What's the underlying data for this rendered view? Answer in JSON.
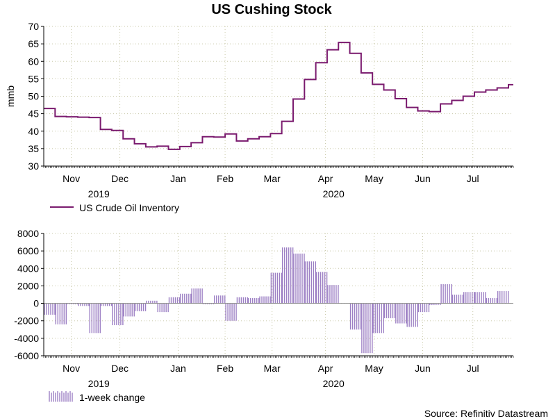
{
  "title": "US Cushing Stock",
  "source": "Source: Refinitiv Datastream",
  "colors": {
    "line": "#7a1a6e",
    "bar": "#9c7fc4",
    "grid": "#c8c8a8",
    "axis": "#000000"
  },
  "chart_data": [
    {
      "type": "line",
      "ylabel": "mmb",
      "ylim": [
        30,
        70
      ],
      "yticks": [
        30,
        35,
        40,
        45,
        50,
        55,
        60,
        65,
        70
      ],
      "xlim": [
        "2019-10-25",
        "2020-08-10"
      ],
      "xticks": [
        {
          "label": "Nov",
          "date": "2019-11-11"
        },
        {
          "label": "Dec",
          "date": "2019-12-11"
        },
        {
          "label": "Jan",
          "date": "2020-01-16"
        },
        {
          "label": "Feb",
          "date": "2020-02-14"
        },
        {
          "label": "Mar",
          "date": "2020-03-14"
        },
        {
          "label": "Apr",
          "date": "2020-04-16"
        },
        {
          "label": "May",
          "date": "2020-05-16"
        },
        {
          "label": "Jun",
          "date": "2020-06-15"
        },
        {
          "label": "Jul",
          "date": "2020-07-16"
        }
      ],
      "year_labels": [
        {
          "label": "2019",
          "date": "2019-11-28"
        },
        {
          "label": "2020",
          "date": "2020-04-21"
        }
      ],
      "grid": true,
      "legend": "bottom-left",
      "series": [
        {
          "name": "US Crude Oil Inventory",
          "x": [
            "2019-10-25",
            "2019-11-01",
            "2019-11-08",
            "2019-11-15",
            "2019-11-22",
            "2019-11-29",
            "2019-12-06",
            "2019-12-13",
            "2019-12-20",
            "2019-12-27",
            "2020-01-03",
            "2020-01-10",
            "2020-01-17",
            "2020-01-24",
            "2020-01-31",
            "2020-02-07",
            "2020-02-14",
            "2020-02-21",
            "2020-02-28",
            "2020-03-06",
            "2020-03-13",
            "2020-03-20",
            "2020-03-27",
            "2020-04-03",
            "2020-04-10",
            "2020-04-17",
            "2020-04-24",
            "2020-05-01",
            "2020-05-08",
            "2020-05-15",
            "2020-05-22",
            "2020-05-29",
            "2020-06-05",
            "2020-06-12",
            "2020-06-19",
            "2020-06-26",
            "2020-07-03",
            "2020-07-10",
            "2020-07-17",
            "2020-07-24",
            "2020-07-31",
            "2020-08-07"
          ],
          "values": [
            46.5,
            44.2,
            44.1,
            44.0,
            43.9,
            40.5,
            40.2,
            37.8,
            36.4,
            35.5,
            35.7,
            34.8,
            35.6,
            36.7,
            38.4,
            38.3,
            39.2,
            37.2,
            37.8,
            38.4,
            39.3,
            42.8,
            49.2,
            54.8,
            59.6,
            63.3,
            65.4,
            62.3,
            56.7,
            53.4,
            51.8,
            49.3,
            46.8,
            45.8,
            45.6,
            47.8,
            48.8,
            50.0,
            51.2,
            51.8,
            52.4,
            53.3
          ]
        }
      ]
    },
    {
      "type": "bar",
      "ylim": [
        -6000,
        8000
      ],
      "yticks": [
        -6000,
        -4000,
        -2000,
        0,
        2000,
        4000,
        6000,
        8000
      ],
      "xlim": [
        "2019-10-25",
        "2020-08-10"
      ],
      "xticks": [
        {
          "label": "Nov",
          "date": "2019-11-11"
        },
        {
          "label": "Dec",
          "date": "2019-12-11"
        },
        {
          "label": "Jan",
          "date": "2020-01-16"
        },
        {
          "label": "Feb",
          "date": "2020-02-14"
        },
        {
          "label": "Mar",
          "date": "2020-03-14"
        },
        {
          "label": "Apr",
          "date": "2020-04-16"
        },
        {
          "label": "May",
          "date": "2020-05-16"
        },
        {
          "label": "Jun",
          "date": "2020-06-15"
        },
        {
          "label": "Jul",
          "date": "2020-07-16"
        }
      ],
      "year_labels": [
        {
          "label": "2019",
          "date": "2019-11-28"
        },
        {
          "label": "2020",
          "date": "2020-04-21"
        }
      ],
      "grid": true,
      "legend": "bottom-left",
      "series": [
        {
          "name": "1-week change",
          "x": [
            "2019-10-25",
            "2019-11-01",
            "2019-11-08",
            "2019-11-15",
            "2019-11-22",
            "2019-11-29",
            "2019-12-06",
            "2019-12-13",
            "2019-12-20",
            "2019-12-27",
            "2020-01-03",
            "2020-01-10",
            "2020-01-17",
            "2020-01-24",
            "2020-01-31",
            "2020-02-07",
            "2020-02-14",
            "2020-02-21",
            "2020-02-28",
            "2020-03-06",
            "2020-03-13",
            "2020-03-20",
            "2020-03-27",
            "2020-04-03",
            "2020-04-10",
            "2020-04-17",
            "2020-04-24",
            "2020-05-01",
            "2020-05-08",
            "2020-05-15",
            "2020-05-22",
            "2020-05-29",
            "2020-06-05",
            "2020-06-12",
            "2020-06-19",
            "2020-06-26",
            "2020-07-03",
            "2020-07-10",
            "2020-07-17",
            "2020-07-24",
            "2020-07-31",
            "2020-08-07"
          ],
          "values": [
            -1300,
            -2400,
            -100,
            -300,
            -3400,
            -300,
            -2500,
            -1500,
            -900,
            300,
            -1000,
            700,
            1100,
            1700,
            -100,
            900,
            -2000,
            700,
            600,
            800,
            3500,
            6400,
            5700,
            4800,
            3600,
            2100,
            0,
            -3000,
            -5700,
            -3400,
            -1700,
            -2300,
            -2700,
            -1000,
            -200,
            2200,
            1000,
            1300,
            1300,
            600,
            1400,
            0
          ]
        }
      ]
    }
  ]
}
